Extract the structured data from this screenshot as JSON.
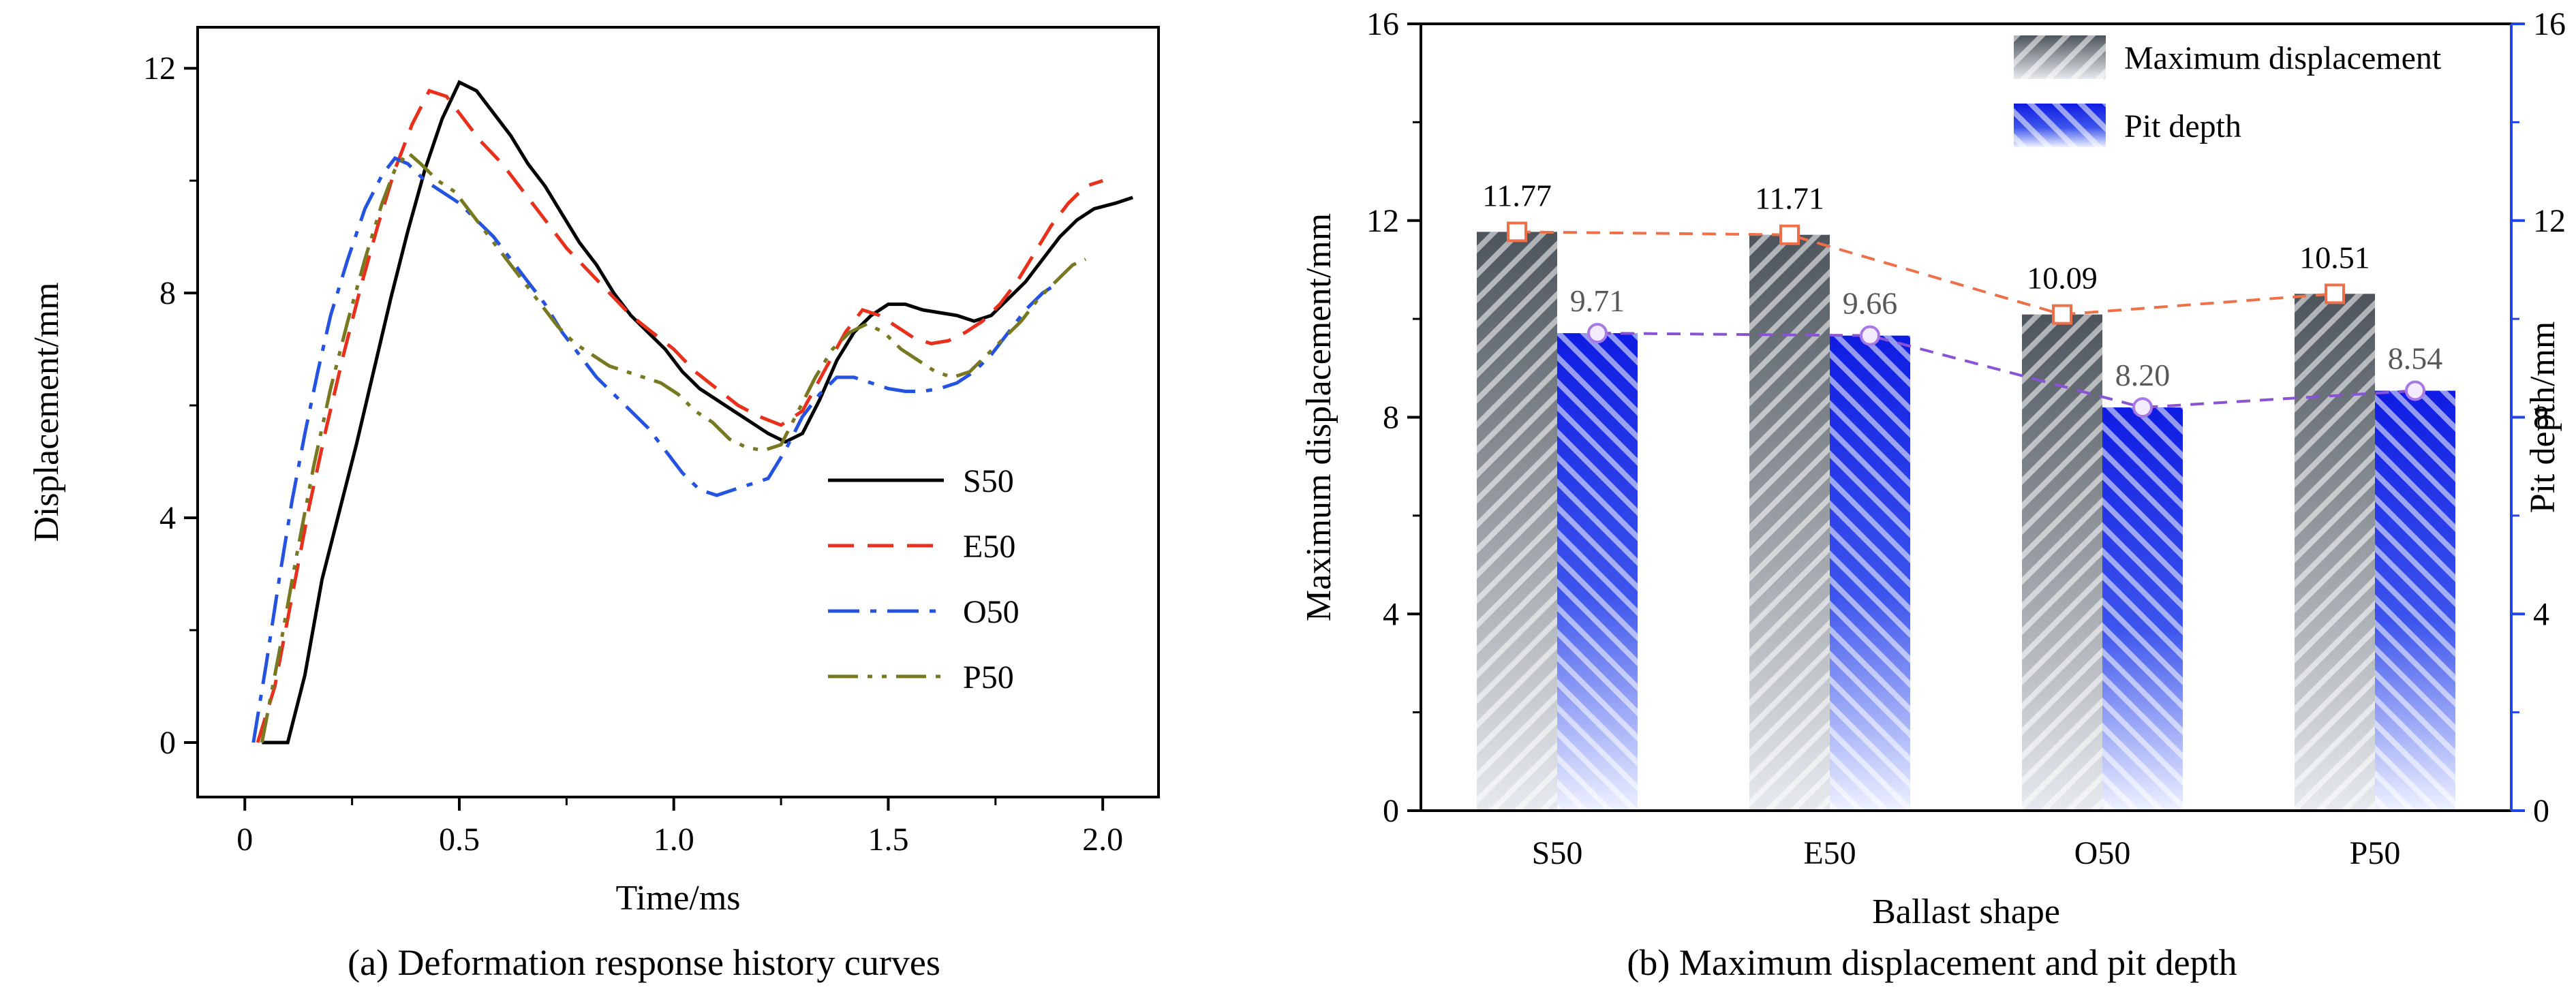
{
  "figure": {
    "caption_a": "(a) Deformation response history curves",
    "caption_b": "(b) Maximum displacement and pit depth"
  },
  "chart_data": [
    {
      "type": "line",
      "title": "",
      "xlabel": "Time/ms",
      "ylabel": "Displacement/mm",
      "xlim": [
        -0.11,
        2.13
      ],
      "ylim": [
        -0.97,
        12.73
      ],
      "xticks": [
        0,
        0.5,
        1.0,
        1.5,
        2.0
      ],
      "xtick_labels": [
        "0",
        "0.5",
        "1.0",
        "1.5",
        "2.0"
      ],
      "yticks": [
        0,
        4,
        8,
        12
      ],
      "ytick_labels": [
        "0",
        "4",
        "8",
        "12"
      ],
      "x_minor_ticks": [
        0.25,
        0.75,
        1.25,
        1.75
      ],
      "y_minor_ticks": [
        2,
        6,
        10
      ],
      "grid": false,
      "legend_position": "inside lower right",
      "series": [
        {
          "name": "S50",
          "color": "#000000",
          "line_style": "solid",
          "points": [
            [
              0.04,
              0
            ],
            [
              0.1,
              0
            ],
            [
              0.14,
              1.2
            ],
            [
              0.18,
              2.9
            ],
            [
              0.22,
              4.1
            ],
            [
              0.26,
              5.3
            ],
            [
              0.3,
              6.6
            ],
            [
              0.34,
              7.9
            ],
            [
              0.38,
              9.1
            ],
            [
              0.42,
              10.2
            ],
            [
              0.46,
              11.1
            ],
            [
              0.5,
              11.75
            ],
            [
              0.54,
              11.6
            ],
            [
              0.58,
              11.2
            ],
            [
              0.62,
              10.8
            ],
            [
              0.66,
              10.3
            ],
            [
              0.7,
              9.9
            ],
            [
              0.74,
              9.4
            ],
            [
              0.78,
              8.9
            ],
            [
              0.82,
              8.5
            ],
            [
              0.86,
              8.0
            ],
            [
              0.9,
              7.6
            ],
            [
              0.94,
              7.3
            ],
            [
              0.98,
              7.0
            ],
            [
              1.02,
              6.6
            ],
            [
              1.06,
              6.3
            ],
            [
              1.1,
              6.1
            ],
            [
              1.14,
              5.9
            ],
            [
              1.18,
              5.7
            ],
            [
              1.22,
              5.5
            ],
            [
              1.26,
              5.35
            ],
            [
              1.3,
              5.5
            ],
            [
              1.34,
              6.1
            ],
            [
              1.38,
              6.8
            ],
            [
              1.42,
              7.3
            ],
            [
              1.46,
              7.6
            ],
            [
              1.5,
              7.8
            ],
            [
              1.54,
              7.8
            ],
            [
              1.58,
              7.7
            ],
            [
              1.62,
              7.65
            ],
            [
              1.66,
              7.6
            ],
            [
              1.7,
              7.5
            ],
            [
              1.74,
              7.6
            ],
            [
              1.78,
              7.9
            ],
            [
              1.82,
              8.2
            ],
            [
              1.86,
              8.6
            ],
            [
              1.9,
              9.0
            ],
            [
              1.94,
              9.3
            ],
            [
              1.98,
              9.5
            ],
            [
              2.03,
              9.6
            ],
            [
              2.07,
              9.7
            ]
          ]
        },
        {
          "name": "E50",
          "color": "#e8301c",
          "line_style": "dashed",
          "points": [
            [
              0.03,
              0
            ],
            [
              0.07,
              1.0
            ],
            [
              0.11,
              2.6
            ],
            [
              0.15,
              4.2
            ],
            [
              0.19,
              5.6
            ],
            [
              0.23,
              6.9
            ],
            [
              0.27,
              8.1
            ],
            [
              0.31,
              9.2
            ],
            [
              0.35,
              10.2
            ],
            [
              0.39,
              11.0
            ],
            [
              0.43,
              11.6
            ],
            [
              0.47,
              11.5
            ],
            [
              0.51,
              11.1
            ],
            [
              0.55,
              10.7
            ],
            [
              0.6,
              10.3
            ],
            [
              0.65,
              9.8
            ],
            [
              0.7,
              9.3
            ],
            [
              0.75,
              8.8
            ],
            [
              0.8,
              8.4
            ],
            [
              0.85,
              8.0
            ],
            [
              0.9,
              7.6
            ],
            [
              0.95,
              7.3
            ],
            [
              1.0,
              7.0
            ],
            [
              1.05,
              6.6
            ],
            [
              1.1,
              6.3
            ],
            [
              1.15,
              6.0
            ],
            [
              1.2,
              5.8
            ],
            [
              1.25,
              5.65
            ],
            [
              1.3,
              5.9
            ],
            [
              1.35,
              6.6
            ],
            [
              1.4,
              7.3
            ],
            [
              1.44,
              7.7
            ],
            [
              1.48,
              7.6
            ],
            [
              1.52,
              7.4
            ],
            [
              1.56,
              7.2
            ],
            [
              1.6,
              7.1
            ],
            [
              1.64,
              7.15
            ],
            [
              1.68,
              7.3
            ],
            [
              1.72,
              7.5
            ],
            [
              1.76,
              7.8
            ],
            [
              1.8,
              8.2
            ],
            [
              1.84,
              8.7
            ],
            [
              1.88,
              9.2
            ],
            [
              1.92,
              9.6
            ],
            [
              1.96,
              9.9
            ],
            [
              2.0,
              10.0
            ]
          ]
        },
        {
          "name": "O50",
          "color": "#2353e0",
          "line_style": "dashdot",
          "points": [
            [
              0.02,
              0
            ],
            [
              0.05,
              1.4
            ],
            [
              0.08,
              2.9
            ],
            [
              0.11,
              4.3
            ],
            [
              0.14,
              5.5
            ],
            [
              0.17,
              6.6
            ],
            [
              0.2,
              7.6
            ],
            [
              0.24,
              8.6
            ],
            [
              0.28,
              9.5
            ],
            [
              0.32,
              10.1
            ],
            [
              0.35,
              10.4
            ],
            [
              0.38,
              10.3
            ],
            [
              0.42,
              10.0
            ],
            [
              0.46,
              9.8
            ],
            [
              0.5,
              9.6
            ],
            [
              0.54,
              9.3
            ],
            [
              0.58,
              9.0
            ],
            [
              0.62,
              8.6
            ],
            [
              0.66,
              8.2
            ],
            [
              0.7,
              7.8
            ],
            [
              0.74,
              7.3
            ],
            [
              0.78,
              6.9
            ],
            [
              0.82,
              6.5
            ],
            [
              0.86,
              6.2
            ],
            [
              0.9,
              5.9
            ],
            [
              0.94,
              5.6
            ],
            [
              0.98,
              5.2
            ],
            [
              1.02,
              4.8
            ],
            [
              1.06,
              4.5
            ],
            [
              1.1,
              4.4
            ],
            [
              1.14,
              4.5
            ],
            [
              1.18,
              4.6
            ],
            [
              1.22,
              4.7
            ],
            [
              1.26,
              5.2
            ],
            [
              1.3,
              5.8
            ],
            [
              1.34,
              6.2
            ],
            [
              1.38,
              6.5
            ],
            [
              1.42,
              6.5
            ],
            [
              1.46,
              6.4
            ],
            [
              1.5,
              6.3
            ],
            [
              1.54,
              6.25
            ],
            [
              1.58,
              6.25
            ],
            [
              1.62,
              6.3
            ],
            [
              1.66,
              6.4
            ],
            [
              1.7,
              6.6
            ],
            [
              1.74,
              6.9
            ],
            [
              1.78,
              7.3
            ],
            [
              1.82,
              7.7
            ],
            [
              1.86,
              8.0
            ],
            [
              1.9,
              8.2
            ]
          ]
        },
        {
          "name": "P50",
          "color": "#77781f",
          "line_style": "dashdotdot",
          "points": [
            [
              0.04,
              0
            ],
            [
              0.08,
              1.6
            ],
            [
              0.12,
              3.3
            ],
            [
              0.16,
              4.9
            ],
            [
              0.2,
              6.3
            ],
            [
              0.24,
              7.5
            ],
            [
              0.28,
              8.6
            ],
            [
              0.32,
              9.6
            ],
            [
              0.35,
              10.2
            ],
            [
              0.38,
              10.5
            ],
            [
              0.41,
              10.3
            ],
            [
              0.45,
              10.0
            ],
            [
              0.49,
              9.8
            ],
            [
              0.53,
              9.4
            ],
            [
              0.57,
              9.0
            ],
            [
              0.61,
              8.6
            ],
            [
              0.65,
              8.2
            ],
            [
              0.69,
              7.8
            ],
            [
              0.73,
              7.4
            ],
            [
              0.77,
              7.1
            ],
            [
              0.81,
              6.9
            ],
            [
              0.85,
              6.7
            ],
            [
              0.89,
              6.6
            ],
            [
              0.93,
              6.5
            ],
            [
              0.97,
              6.4
            ],
            [
              1.01,
              6.2
            ],
            [
              1.05,
              5.9
            ],
            [
              1.09,
              5.7
            ],
            [
              1.13,
              5.4
            ],
            [
              1.17,
              5.25
            ],
            [
              1.21,
              5.2
            ],
            [
              1.25,
              5.3
            ],
            [
              1.29,
              5.9
            ],
            [
              1.33,
              6.5
            ],
            [
              1.37,
              7.0
            ],
            [
              1.41,
              7.3
            ],
            [
              1.45,
              7.45
            ],
            [
              1.49,
              7.3
            ],
            [
              1.53,
              7.0
            ],
            [
              1.57,
              6.8
            ],
            [
              1.61,
              6.6
            ],
            [
              1.65,
              6.5
            ],
            [
              1.69,
              6.6
            ],
            [
              1.73,
              6.9
            ],
            [
              1.77,
              7.2
            ],
            [
              1.81,
              7.5
            ],
            [
              1.85,
              7.9
            ],
            [
              1.89,
              8.2
            ],
            [
              1.93,
              8.5
            ],
            [
              1.96,
              8.6
            ]
          ]
        }
      ]
    },
    {
      "type": "bar",
      "title": "",
      "xlabel": "Ballast shape",
      "ylabel_left": "Maximum displacement/mm",
      "ylabel_right": "Pit depth/mm",
      "categories": [
        "S50",
        "E50",
        "O50",
        "P50"
      ],
      "ylim": [
        0,
        16
      ],
      "yticks": [
        0,
        4,
        8,
        12,
        16
      ],
      "ytick_labels": [
        "0",
        "4",
        "8",
        "12",
        "16"
      ],
      "y_minor_ticks": [
        2,
        6,
        10,
        14
      ],
      "right_axis_color": "#2244ee",
      "legend_position": "inside upper center-right",
      "series": [
        {
          "name": "Maximum displacement",
          "values": [
            11.77,
            11.71,
            10.09,
            10.51
          ],
          "value_labels": [
            "11.77",
            "11.71",
            "10.09",
            "10.51"
          ],
          "label_color": "#000000",
          "hatch": "/",
          "gradient": [
            {
              "offset": "0%",
              "color": "#4d545c"
            },
            {
              "offset": "100%",
              "color": "#e6e9ed"
            }
          ],
          "trend_line_color": "#ef7048",
          "marker": "square",
          "marker_color": "#ef7048"
        },
        {
          "name": "Pit depth",
          "values": [
            9.71,
            9.66,
            8.2,
            8.54
          ],
          "value_labels": [
            "9.71",
            "9.66",
            "8.20",
            "8.54"
          ],
          "label_color": "#595959",
          "hatch": "\\",
          "gradient": [
            {
              "offset": "0%",
              "color": "#0e1ce2"
            },
            {
              "offset": "55%",
              "color": "#3d55ec"
            },
            {
              "offset": "100%",
              "color": "#eef1ff"
            }
          ],
          "trend_line_color": "#8a52d6",
          "marker": "circle",
          "marker_color": "#a879e6"
        }
      ]
    }
  ]
}
